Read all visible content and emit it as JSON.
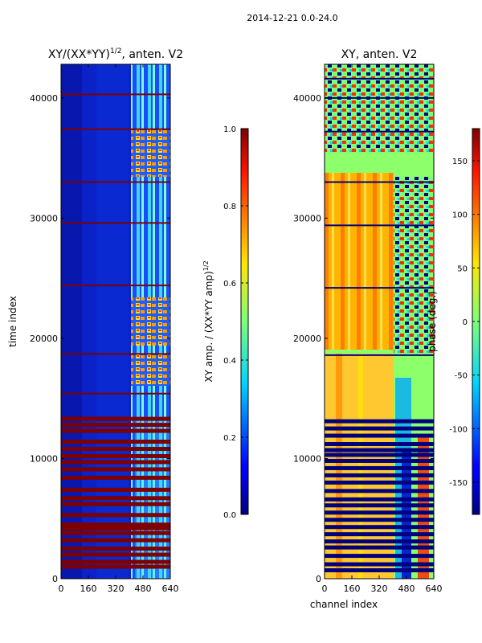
{
  "chart_data": {
    "suptitle": "2014-12-21 0.0-24.0",
    "panels": [
      {
        "type": "heatmap",
        "title": "XY/(XX*YY)^{1/2}, anten. V2",
        "title_main": "XY/(XX*YY)",
        "title_sup": "1/2",
        "title_tail": ", anten. V2",
        "xlabel": "",
        "ylabel": "time index",
        "xlim": [
          0,
          640
        ],
        "ylim": [
          0,
          42800
        ],
        "xticks": [
          0,
          160,
          320,
          480,
          640
        ],
        "yticks": [
          0,
          10000,
          20000,
          30000,
          40000
        ],
        "colormap": "jet",
        "colorbar": {
          "label": "XY amp. / (XX*YY amp)^{1/2}",
          "label_main": "XY amp. / (XX*YY amp)",
          "label_sup": "1/2",
          "vmin": 0.0,
          "vmax": 1.0,
          "ticks": [
            "0.0",
            "0.2",
            "0.4",
            "0.6",
            "0.8",
            "1.0"
          ]
        },
        "flagged_time_rows": [
          1000,
          1400,
          2000,
          2500,
          3200,
          3800,
          4200,
          4500,
          5300,
          6200,
          6700,
          7400,
          8400,
          9100,
          9700,
          10200,
          10800,
          11400,
          12300,
          12800,
          13300,
          15400,
          18700,
          24400,
          29600,
          33000,
          37400,
          40300
        ],
        "bright_channel_range": [
          420,
          640
        ]
      },
      {
        "type": "heatmap",
        "title": "XY, anten. V2",
        "xlabel": "channel index",
        "ylabel": "",
        "xlim": [
          0,
          640
        ],
        "ylim": [
          0,
          42800
        ],
        "xticks": [
          0,
          160,
          320,
          480,
          640
        ],
        "yticks": [
          0,
          10000,
          20000,
          30000,
          40000
        ],
        "colormap": "jet",
        "colorbar": {
          "label": "phase (deg.)",
          "vmin": -180,
          "vmax": 180,
          "ticks": [
            -150,
            -100,
            -50,
            0,
            50,
            100,
            150
          ]
        },
        "flagged_time_rows": [
          700,
          1200,
          1900,
          2600,
          3100,
          3700,
          4300,
          4900,
          5500,
          6100,
          6600,
          7300,
          8000,
          8600,
          9200,
          9800,
          10300,
          10700,
          11200,
          11900,
          12500,
          13100,
          18600,
          24200,
          29400,
          33000,
          37200,
          40000,
          41600
        ]
      }
    ]
  }
}
